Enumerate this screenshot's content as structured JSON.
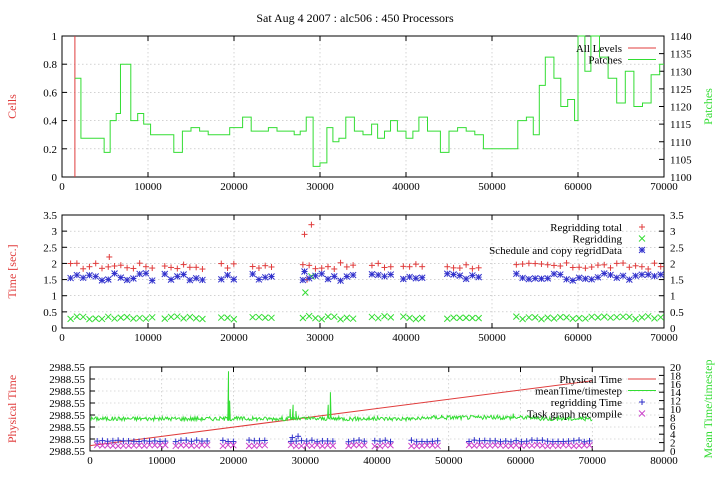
{
  "title": "Sat Aug 4 2007 : alc506 : 450 Processors",
  "colors": {
    "red": "#e03c3c",
    "green": "#33dd33",
    "blue": "#3030cc",
    "magenta": "#cc44cc",
    "grid": "#b8b8b8"
  },
  "chart_data": [
    {
      "type": "line",
      "ylabel": "Cells",
      "y2label": "Patches",
      "xlim": [
        0,
        70000
      ],
      "ylim": [
        0,
        1
      ],
      "y2lim": [
        1100,
        1140
      ],
      "xticks": [
        "0",
        "10000",
        "20000",
        "30000",
        "40000",
        "50000",
        "60000",
        "70000"
      ],
      "yticks": [
        "0",
        "0.2",
        "0.4",
        "0.6",
        "0.8",
        "1"
      ],
      "y2ticks": [
        "1100",
        "1105",
        "1110",
        "1115",
        "1120",
        "1125",
        "1130",
        "1135",
        "1140"
      ],
      "grid": true,
      "legend_position": "top-right",
      "series": [
        {
          "name": "All Levels",
          "color": "#e03c3c",
          "axis": "y",
          "kind": "vline",
          "x": 1500
        },
        {
          "name": "Patches",
          "color": "#33dd33",
          "axis": "y2",
          "kind": "step",
          "x": [
            1500,
            2200,
            4000,
            4900,
            5600,
            6300,
            6800,
            8000,
            8800,
            9500,
            10300,
            11500,
            12000,
            13000,
            14000,
            15000,
            16000,
            17000,
            18500,
            19500,
            20000,
            21000,
            22000,
            23000,
            24000,
            25000,
            26000,
            27000,
            27700,
            28400,
            29200,
            30000,
            30800,
            31500,
            32200,
            33000,
            34000,
            35000,
            36000,
            36700,
            37500,
            38200,
            39000,
            40000,
            40800,
            41500,
            42500,
            44000,
            45000,
            46000,
            47000,
            48000,
            49000,
            50000,
            51000,
            52000,
            53000,
            54000,
            54800,
            55500,
            56200,
            57200,
            58000,
            58800,
            59600,
            60000,
            60800,
            61500,
            62500,
            63500,
            64500,
            65500,
            66500,
            67500,
            68500,
            69500,
            70000
          ],
          "values": [
            1128,
            1111,
            1111,
            1107,
            1116,
            1118,
            1132,
            1116,
            1118,
            1115,
            1112,
            1112,
            1112,
            1107,
            1113,
            1114,
            1113,
            1112,
            1112,
            1114,
            1114,
            1117,
            1113,
            1113,
            1114,
            1113,
            1113,
            1112,
            1113,
            1117,
            1103,
            1104,
            1114,
            1110,
            1111,
            1117,
            1113,
            1112,
            1115,
            1111,
            1113,
            1116,
            1113,
            1111,
            1113,
            1117,
            1113,
            1107,
            1113,
            1114,
            1113,
            1112,
            1108,
            1108,
            1108,
            1108,
            1116,
            1117,
            1112,
            1126,
            1134,
            1128,
            1120,
            1122,
            1116,
            1140,
            1130,
            1140,
            1134,
            1128,
            1121,
            1130,
            1120,
            1121,
            1129,
            1132,
            1132
          ]
        }
      ]
    },
    {
      "type": "scatter",
      "ylabel": "Time [sec.]",
      "xlim": [
        0,
        70000
      ],
      "ylim": [
        0,
        3.5
      ],
      "xticks": [
        "0",
        "10000",
        "20000",
        "30000",
        "40000",
        "50000",
        "60000",
        "70000"
      ],
      "yticks": [
        "0",
        "0.5",
        "1",
        "1.5",
        "2",
        "2.5",
        "3",
        "3.5"
      ],
      "grid": true,
      "legend_position": "top-right",
      "gaps": [
        [
          11000,
          11500
        ],
        [
          16500,
          18500
        ],
        [
          20500,
          21500
        ],
        [
          25000,
          28000
        ],
        [
          34500,
          35500
        ],
        [
          38500,
          39500
        ],
        [
          42500,
          44500
        ],
        [
          49000,
          52500
        ]
      ],
      "series": [
        {
          "name": "Regridding total",
          "color": "#e03c3c",
          "marker": "plus",
          "base": 1.92,
          "amp": 0.1,
          "extra": [
            [
              5500,
              2.2
            ],
            [
              28200,
              2.9
            ],
            [
              29000,
              3.2
            ],
            [
              28500,
              1.5
            ]
          ]
        },
        {
          "name": "Regridding",
          "color": "#33dd33",
          "marker": "x",
          "base": 0.32,
          "amp": 0.05,
          "extra": [
            [
              28300,
              1.1
            ],
            [
              29000,
              1.6
            ]
          ]
        },
        {
          "name": "Schedule and copy regridData",
          "color": "#3030cc",
          "marker": "star",
          "base": 1.58,
          "amp": 0.12,
          "extra": [
            [
              28200,
              1.75
            ]
          ]
        }
      ]
    },
    {
      "type": "line",
      "ylabel": "Physical Time",
      "y2label": "Mean Time/timestep",
      "xlim": [
        0,
        80000
      ],
      "ylim": [
        0,
        7
      ],
      "y2lim": [
        0,
        20
      ],
      "xticks": [
        "0",
        "10000",
        "20000",
        "30000",
        "40000",
        "50000",
        "60000",
        "70000",
        "80000"
      ],
      "yticks": [
        "2988.55",
        "2988.55",
        "2988.55",
        "2988.55",
        "2988.55",
        "2988.55",
        "2988.55",
        "2988.55"
      ],
      "y2ticks": [
        "0",
        "2",
        "4",
        "6",
        "8",
        "10",
        "12",
        "14",
        "16",
        "18",
        "20"
      ],
      "grid": true,
      "legend_position": "top-right",
      "series": [
        {
          "name": "Physical Time",
          "color": "#e03c3c",
          "axis": "y",
          "kind": "line",
          "x": [
            0,
            70000
          ],
          "values": [
            0.45,
            5.85
          ]
        },
        {
          "name": "meanTime/timestep",
          "color": "#33dd33",
          "axis": "y2",
          "kind": "noisy",
          "x0": 0,
          "x1": 70000,
          "base": 7.7,
          "amp": 0.5,
          "spikes": [
            [
              19300,
              19
            ],
            [
              19450,
              12
            ],
            [
              27900,
              10
            ],
            [
              28300,
              11
            ],
            [
              28700,
              9.5
            ],
            [
              33200,
              11
            ],
            [
              33500,
              14
            ],
            [
              49000,
              8.6
            ],
            [
              59000,
              8.9
            ],
            [
              63000,
              8.3
            ]
          ]
        },
        {
          "name": "regridding Time",
          "color": "#3030cc",
          "axis": "y2",
          "kind": "marks",
          "marker": "plus",
          "base": 2.4,
          "amp": 0.2,
          "extra": [
            [
              28200,
              3.2
            ],
            [
              29000,
              3.5
            ]
          ]
        },
        {
          "name": "Task graph recompile",
          "color": "#cc44cc",
          "axis": "y2",
          "kind": "marks",
          "marker": "x",
          "base": 1.3,
          "amp": 0.15
        }
      ]
    }
  ]
}
